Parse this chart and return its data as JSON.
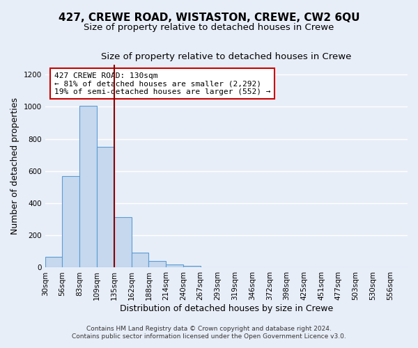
{
  "title": "427, CREWE ROAD, WISTASTON, CREWE, CW2 6QU",
  "subtitle": "Size of property relative to detached houses in Crewe",
  "xlabel": "Distribution of detached houses by size in Crewe",
  "ylabel": "Number of detached properties",
  "bin_labels": [
    "30sqm",
    "56sqm",
    "83sqm",
    "109sqm",
    "135sqm",
    "162sqm",
    "188sqm",
    "214sqm",
    "240sqm",
    "267sqm",
    "293sqm",
    "319sqm",
    "346sqm",
    "372sqm",
    "398sqm",
    "425sqm",
    "451sqm",
    "477sqm",
    "503sqm",
    "530sqm",
    "556sqm"
  ],
  "bar_values": [
    65,
    570,
    1005,
    750,
    315,
    95,
    40,
    20,
    10,
    0,
    0,
    0,
    0,
    0,
    0,
    0,
    0,
    0,
    0,
    0,
    0
  ],
  "bar_color": "#c5d8ee",
  "bar_edge_color": "#5b9bd5",
  "vline_color": "#8b0000",
  "vline_x_index": 4,
  "annotation_text": "427 CREWE ROAD: 130sqm\n← 81% of detached houses are smaller (2,292)\n19% of semi-detached houses are larger (552) →",
  "annotation_box_color": "#ffffff",
  "annotation_box_edge": "#cc0000",
  "ylim": [
    0,
    1260
  ],
  "yticks": [
    0,
    200,
    400,
    600,
    800,
    1000,
    1200
  ],
  "footer_text": "Contains HM Land Registry data © Crown copyright and database right 2024.\nContains public sector information licensed under the Open Government Licence v3.0.",
  "background_color": "#e8eef8",
  "grid_color": "#ffffff",
  "title_fontsize": 11,
  "subtitle_fontsize": 9.5,
  "axis_label_fontsize": 9,
  "tick_fontsize": 7.5,
  "annotation_fontsize": 8,
  "footer_fontsize": 6.5
}
